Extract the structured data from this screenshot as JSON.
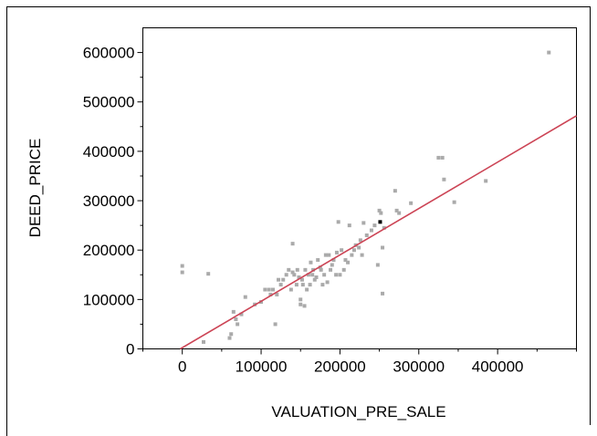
{
  "chart_data": {
    "type": "scatter",
    "title": "",
    "xlabel": "VALUATION_PRE_SALE",
    "ylabel": "DEED_PRICE",
    "xlim": [
      -50000,
      500000
    ],
    "ylim": [
      0,
      650000
    ],
    "x_ticks": [
      0,
      100000,
      200000,
      300000,
      400000
    ],
    "x_tick_labels": [
      "0",
      "100000",
      "200000",
      "300000",
      "400000"
    ],
    "y_ticks": [
      0,
      100000,
      200000,
      300000,
      400000,
      500000,
      600000
    ],
    "y_tick_labels": [
      "0",
      "100000",
      "200000",
      "300000",
      "400000",
      "500000",
      "600000"
    ],
    "grid": false,
    "point_color": "#aaaaaa",
    "highlight_color": "#000000",
    "fit_line_color": "#cc4455",
    "fit_line": {
      "x": [
        -2500,
        500000
      ],
      "y": [
        0,
        472000
      ]
    },
    "highlight_point": {
      "x": 251000,
      "y": 257000
    },
    "points": [
      [
        0,
        168000
      ],
      [
        0,
        155000
      ],
      [
        33000,
        152000
      ],
      [
        27000,
        14000
      ],
      [
        60000,
        22000
      ],
      [
        62000,
        30000
      ],
      [
        65000,
        75000
      ],
      [
        68000,
        60000
      ],
      [
        70000,
        50000
      ],
      [
        75000,
        70000
      ],
      [
        80000,
        105000
      ],
      [
        92000,
        90000
      ],
      [
        100000,
        95000
      ],
      [
        105000,
        120000
      ],
      [
        110000,
        120000
      ],
      [
        112000,
        110000
      ],
      [
        115000,
        120000
      ],
      [
        118000,
        50000
      ],
      [
        120000,
        110000
      ],
      [
        122000,
        140000
      ],
      [
        125000,
        130000
      ],
      [
        128000,
        140000
      ],
      [
        132000,
        150000
      ],
      [
        135000,
        160000
      ],
      [
        138000,
        120000
      ],
      [
        140000,
        155000
      ],
      [
        140000,
        213000
      ],
      [
        142000,
        150000
      ],
      [
        145000,
        130000
      ],
      [
        146000,
        160000
      ],
      [
        148000,
        145000
      ],
      [
        150000,
        90000
      ],
      [
        150000,
        100000
      ],
      [
        152000,
        140000
      ],
      [
        153000,
        130000
      ],
      [
        155000,
        87000
      ],
      [
        156000,
        160000
      ],
      [
        158000,
        120000
      ],
      [
        160000,
        150000
      ],
      [
        162000,
        130000
      ],
      [
        163000,
        175000
      ],
      [
        165000,
        150000
      ],
      [
        166000,
        160000
      ],
      [
        168000,
        140000
      ],
      [
        170000,
        145000
      ],
      [
        172000,
        180000
      ],
      [
        175000,
        165000
      ],
      [
        176000,
        160000
      ],
      [
        178000,
        130000
      ],
      [
        180000,
        150000
      ],
      [
        182000,
        190000
      ],
      [
        184000,
        135000
      ],
      [
        186000,
        190000
      ],
      [
        188000,
        160000
      ],
      [
        190000,
        170000
      ],
      [
        192000,
        180000
      ],
      [
        195000,
        150000
      ],
      [
        196000,
        195000
      ],
      [
        198000,
        257000
      ],
      [
        200000,
        150000
      ],
      [
        202000,
        200000
      ],
      [
        205000,
        160000
      ],
      [
        207000,
        180000
      ],
      [
        210000,
        175000
      ],
      [
        212000,
        250000
      ],
      [
        215000,
        190000
      ],
      [
        218000,
        200000
      ],
      [
        220000,
        210000
      ],
      [
        224000,
        205000
      ],
      [
        226000,
        220000
      ],
      [
        228000,
        190000
      ],
      [
        230000,
        255000
      ],
      [
        234000,
        230000
      ],
      [
        240000,
        240000
      ],
      [
        244000,
        250000
      ],
      [
        248000,
        170000
      ],
      [
        250000,
        280000
      ],
      [
        252000,
        275000
      ],
      [
        254000,
        205000
      ],
      [
        254000,
        112000
      ],
      [
        256000,
        245000
      ],
      [
        270000,
        320000
      ],
      [
        272000,
        280000
      ],
      [
        275000,
        275000
      ],
      [
        290000,
        295000
      ],
      [
        325000,
        387000
      ],
      [
        330000,
        387000
      ],
      [
        332000,
        343000
      ],
      [
        345000,
        297000
      ],
      [
        385000,
        340000
      ],
      [
        465000,
        600000
      ]
    ]
  }
}
